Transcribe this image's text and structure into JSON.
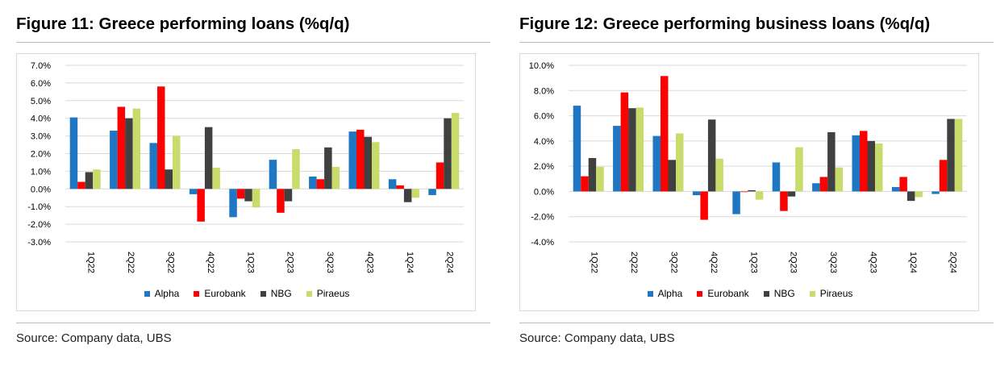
{
  "source": "Source: Company data, UBS",
  "chart_data": [
    {
      "type": "bar",
      "title": "Figure 11: Greece performing loans (%q/q)",
      "categories": [
        "1Q22",
        "2Q22",
        "3Q22",
        "4Q22",
        "1Q23",
        "2Q23",
        "3Q23",
        "4Q23",
        "1Q24",
        "2Q24"
      ],
      "series": [
        {
          "name": "Alpha",
          "color": "#1f77c4",
          "values": [
            4.05,
            3.3,
            2.6,
            -0.3,
            -1.6,
            1.65,
            0.7,
            3.25,
            0.55,
            -0.35
          ]
        },
        {
          "name": "Eurobank",
          "color": "#ff0000",
          "values": [
            0.4,
            4.65,
            5.8,
            -1.85,
            -0.55,
            -1.35,
            0.55,
            3.35,
            0.2,
            1.5
          ]
        },
        {
          "name": "NBG",
          "color": "#404040",
          "values": [
            0.95,
            4.0,
            1.1,
            3.5,
            -0.7,
            -0.7,
            2.35,
            2.95,
            -0.75,
            4.0
          ]
        },
        {
          "name": "Piraeus",
          "color": "#c9dc6b",
          "values": [
            1.1,
            4.55,
            3.0,
            1.2,
            -1.05,
            2.25,
            1.25,
            2.65,
            -0.5,
            4.3
          ]
        }
      ],
      "ylim": [
        -3.0,
        7.0
      ],
      "yticks": [
        -3.0,
        -2.0,
        -1.0,
        0.0,
        1.0,
        2.0,
        3.0,
        4.0,
        5.0,
        6.0,
        7.0
      ],
      "ytick_labels": [
        "-3.0%",
        "-2.0%",
        "-1.0%",
        "0.0%",
        "1.0%",
        "2.0%",
        "3.0%",
        "4.0%",
        "5.0%",
        "6.0%",
        "7.0%"
      ],
      "grid": true,
      "legend": "bottom"
    },
    {
      "type": "bar",
      "title": "Figure 12: Greece performing business loans (%q/q)",
      "categories": [
        "1Q22",
        "2Q22",
        "3Q22",
        "4Q22",
        "1Q23",
        "2Q23",
        "3Q23",
        "4Q23",
        "1Q24",
        "2Q24"
      ],
      "series": [
        {
          "name": "Alpha",
          "color": "#1f77c4",
          "values": [
            6.8,
            5.2,
            4.4,
            -0.3,
            -1.8,
            2.3,
            0.65,
            4.45,
            0.35,
            -0.2
          ]
        },
        {
          "name": "Eurobank",
          "color": "#ff0000",
          "values": [
            1.2,
            7.85,
            9.15,
            -2.25,
            0.0,
            -1.55,
            1.15,
            4.8,
            1.15,
            2.5
          ]
        },
        {
          "name": "NBG",
          "color": "#404040",
          "values": [
            2.65,
            6.6,
            2.5,
            5.7,
            0.1,
            -0.4,
            4.7,
            4.0,
            -0.75,
            5.75
          ]
        },
        {
          "name": "Piraeus",
          "color": "#c9dc6b",
          "values": [
            1.95,
            6.65,
            4.6,
            2.6,
            -0.65,
            3.5,
            1.9,
            3.8,
            -0.45,
            5.75
          ]
        }
      ],
      "ylim": [
        -4.0,
        10.0
      ],
      "yticks": [
        -4.0,
        -2.0,
        0.0,
        2.0,
        4.0,
        6.0,
        8.0,
        10.0
      ],
      "ytick_labels": [
        "-4.0%",
        "-2.0%",
        "0.0%",
        "2.0%",
        "4.0%",
        "6.0%",
        "8.0%",
        "10.0%"
      ],
      "grid": true,
      "legend": "bottom"
    }
  ]
}
